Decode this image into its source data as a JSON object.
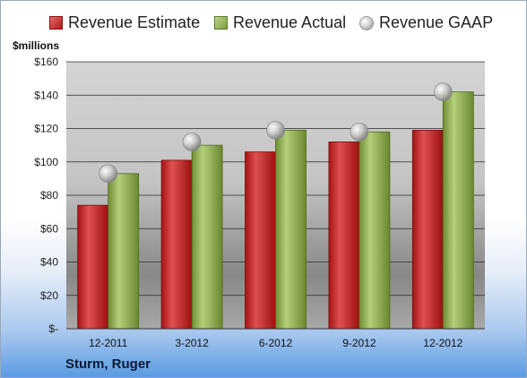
{
  "legend": {
    "estimate": "Revenue Estimate",
    "actual": "Revenue Actual",
    "gaap": "Revenue GAAP"
  },
  "unit_label": "$millions",
  "company": "Sturm, Ruger",
  "colors": {
    "estimate": "#c62828",
    "actual": "#9bbb59",
    "gaap": "#c8c8c8"
  },
  "chart_data": {
    "type": "bar",
    "title": "",
    "xlabel": "",
    "ylabel": "$millions",
    "categories": [
      "12-2011",
      "3-2012",
      "6-2012",
      "9-2012",
      "12-2012"
    ],
    "series": [
      {
        "name": "Revenue Estimate",
        "type": "bar",
        "values": [
          74,
          101,
          106,
          112,
          119
        ]
      },
      {
        "name": "Revenue Actual",
        "type": "bar",
        "values": [
          93,
          110,
          119,
          118,
          142
        ]
      },
      {
        "name": "Revenue GAAP",
        "type": "scatter",
        "values": [
          93,
          112,
          119,
          118,
          142
        ]
      }
    ],
    "ylim": [
      0,
      160
    ],
    "yticks": [
      0,
      20,
      40,
      60,
      80,
      100,
      120,
      140,
      160
    ],
    "ytick_labels": [
      "$-",
      "$20",
      "$40",
      "$60",
      "$80",
      "$100",
      "$120",
      "$140",
      "$160"
    ],
    "grid": true,
    "legend_position": "top"
  }
}
